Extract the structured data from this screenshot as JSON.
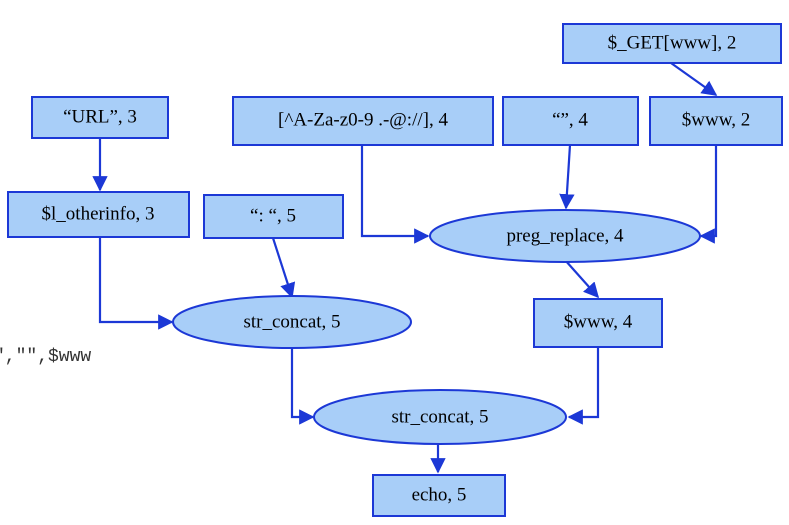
{
  "colors": {
    "node_fill": "#a8cef8",
    "node_stroke": "#1c38d6",
    "edge": "#1c38d6"
  },
  "code_fragment": "\",\"\",$www",
  "nodes": {
    "get_www": "$_GET[www],   2",
    "url": "“URL”,   3",
    "regex": "[^A-Za-z0-9 .-@://], 4",
    "empty_str": "“”,   4",
    "www_2": "$www,   2",
    "l_otherinfo": "$l_otherinfo,   3",
    "colon_str": "“: “,   5",
    "preg_replace": "preg_replace,   4",
    "str_concat_1": "str_concat,   5",
    "www_4": "$www,   4",
    "str_concat_2": "str_concat,   5",
    "echo": "echo,   5"
  }
}
